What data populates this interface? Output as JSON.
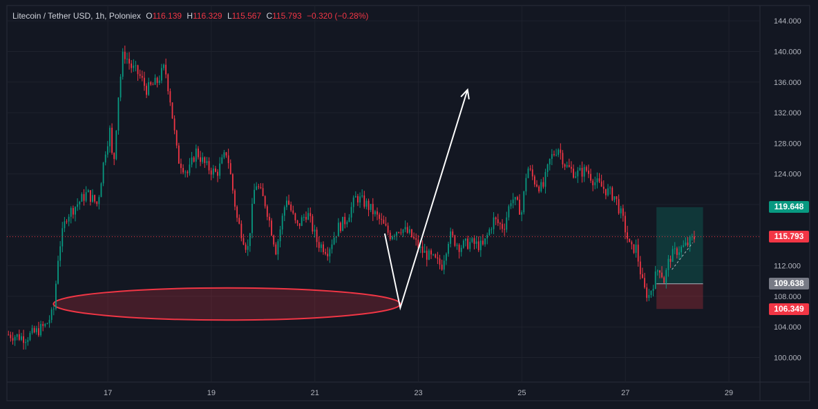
{
  "legend": {
    "symbol": "Litecoin / Tether USD, 1h, Poloniex",
    "o_label": "O",
    "o_value": "116.139",
    "h_label": "H",
    "h_value": "116.329",
    "l_label": "L",
    "l_value": "115.567",
    "c_label": "C",
    "c_value": "115.793",
    "change": "−0.320 (−0.28%)"
  },
  "price_tags": {
    "target": "119.648",
    "last": "115.793",
    "entry": "109.638",
    "stop": "106.349"
  },
  "colors": {
    "background": "#131722",
    "grid": "#1e222d",
    "up": "#089981",
    "down": "#f23645",
    "text": "#b2b5be"
  },
  "chart_data": {
    "type": "candlestick",
    "title": "Litecoin / Tether USD, 1h, Poloniex",
    "y_ticks": [
      100,
      104,
      108,
      112,
      116,
      120,
      124,
      128,
      132,
      136,
      140,
      144
    ],
    "y_tick_labels": [
      "100.000",
      "104.000",
      "108.000",
      "112.000",
      "116.000",
      "120.000",
      "124.000",
      "128.000",
      "132.000",
      "136.000",
      "140.000",
      "144.000"
    ],
    "x_ticks": [
      17,
      19,
      21,
      23,
      25,
      27,
      29
    ],
    "x_tick_labels": [
      "17",
      "19",
      "21",
      "23",
      "25",
      "27",
      "29"
    ],
    "x_range": [
      15.05,
      29.6
    ],
    "ylim": [
      96.8,
      146.0
    ],
    "grid": true,
    "close_path": [
      [
        15.08,
        103.0
      ],
      [
        15.4,
        102.6
      ],
      [
        15.6,
        103.3
      ],
      [
        15.8,
        104.2
      ],
      [
        15.95,
        106.0
      ],
      [
        16.05,
        114.0
      ],
      [
        16.2,
        118.5
      ],
      [
        16.4,
        120.0
      ],
      [
        16.6,
        121.5
      ],
      [
        16.8,
        120.0
      ],
      [
        16.95,
        127.0
      ],
      [
        17.05,
        130.0
      ],
      [
        17.1,
        124.0
      ],
      [
        17.2,
        134.0
      ],
      [
        17.3,
        140.0
      ],
      [
        17.45,
        138.0
      ],
      [
        17.6,
        137.0
      ],
      [
        17.75,
        135.0
      ],
      [
        17.95,
        136.0
      ],
      [
        18.1,
        138.0
      ],
      [
        18.2,
        134.0
      ],
      [
        18.35,
        126.0
      ],
      [
        18.55,
        124.0
      ],
      [
        18.7,
        127.0
      ],
      [
        18.9,
        125.0
      ],
      [
        19.1,
        124.0
      ],
      [
        19.3,
        127.0
      ],
      [
        19.5,
        118.0
      ],
      [
        19.7,
        114.0
      ],
      [
        19.85,
        123.0
      ],
      [
        20.05,
        120.0
      ],
      [
        20.25,
        114.0
      ],
      [
        20.45,
        121.0
      ],
      [
        20.65,
        117.0
      ],
      [
        20.85,
        119.0
      ],
      [
        21.05,
        115.0
      ],
      [
        21.25,
        114.0
      ],
      [
        21.45,
        117.0
      ],
      [
        21.6,
        118.0
      ],
      [
        21.8,
        121.0
      ],
      [
        22.0,
        120.0
      ],
      [
        22.25,
        118.0
      ],
      [
        22.45,
        116.0
      ],
      [
        22.65,
        117.0
      ],
      [
        22.85,
        116.0
      ],
      [
        23.05,
        114.0
      ],
      [
        23.25,
        113.0
      ],
      [
        23.45,
        112.0
      ],
      [
        23.6,
        116.0
      ],
      [
        23.8,
        114.5
      ],
      [
        24.0,
        115.0
      ],
      [
        24.25,
        114.5
      ],
      [
        24.45,
        118.0
      ],
      [
        24.65,
        117.0
      ],
      [
        24.8,
        121.0
      ],
      [
        25.0,
        119.0
      ],
      [
        25.1,
        125.0
      ],
      [
        25.25,
        123.0
      ],
      [
        25.4,
        122.0
      ],
      [
        25.55,
        126.0
      ],
      [
        25.7,
        127.5
      ],
      [
        25.85,
        125.0
      ],
      [
        26.05,
        124.0
      ],
      [
        26.25,
        124.5
      ],
      [
        26.4,
        123.0
      ],
      [
        26.6,
        122.0
      ],
      [
        26.8,
        121.0
      ],
      [
        26.95,
        118.0
      ],
      [
        27.1,
        114.0
      ],
      [
        27.2,
        114.5
      ],
      [
        27.35,
        109.0
      ],
      [
        27.45,
        108.0
      ],
      [
        27.55,
        110.0
      ],
      [
        27.65,
        112.0
      ],
      [
        27.75,
        110.0
      ],
      [
        27.85,
        113.0
      ],
      [
        28.0,
        114.0
      ],
      [
        28.15,
        114.5
      ],
      [
        28.35,
        115.8
      ]
    ],
    "annotations": {
      "support_zone": {
        "x_start": 15.95,
        "x_end": 22.65,
        "y_center": 107.0,
        "y_half_height": 2.1
      },
      "projection_path": [
        [
          22.35,
          116.2
        ],
        [
          22.65,
          106.5
        ],
        [
          23.95,
          135.0
        ]
      ],
      "position": {
        "x_start": 27.6,
        "x_end": 28.5,
        "target": 119.648,
        "entry": 109.638,
        "stop": 106.349
      }
    }
  }
}
